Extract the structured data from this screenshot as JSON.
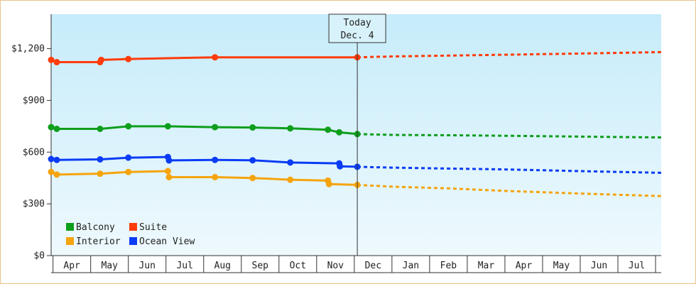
{
  "chart_data": {
    "type": "line",
    "ylim": [
      0,
      1400
    ],
    "y_ticks": [
      {
        "value": 0,
        "label": "$0"
      },
      {
        "value": 300,
        "label": "$300"
      },
      {
        "value": 600,
        "label": "$600"
      },
      {
        "value": 900,
        "label": "$900"
      },
      {
        "value": 1200,
        "label": "$1,200"
      }
    ],
    "months": [
      "Apr",
      "May",
      "Jun",
      "Jul",
      "Aug",
      "Sep",
      "Oct",
      "Nov",
      "Dec",
      "Jan",
      "Feb",
      "Mar",
      "Apr",
      "May",
      "Jun",
      "Jul"
    ],
    "today": {
      "line1": "Today",
      "line2": "Dec. 4",
      "x": 8.08
    },
    "x_range": [
      -0.05,
      16.15
    ],
    "legend": {
      "placement": "bottom-left",
      "items": [
        {
          "name": "Balcony",
          "color": "#0e9e1c"
        },
        {
          "name": "Suite",
          "color": "#ff3c0a"
        },
        {
          "name": "Interior",
          "color": "#f5a40e"
        },
        {
          "name": "Ocean View",
          "color": "#0a3cf5"
        }
      ]
    },
    "series": [
      {
        "name": "Suite",
        "color": "#ff3c0a",
        "points": [
          [
            -0.05,
            1135
          ],
          [
            0.1,
            1122
          ],
          [
            1.25,
            1122
          ],
          [
            1.28,
            1135
          ],
          [
            2.0,
            1140
          ],
          [
            4.3,
            1150
          ],
          [
            8.08,
            1150
          ]
        ],
        "forecast": [
          [
            8.08,
            1150
          ],
          [
            9.0,
            1155
          ],
          [
            10.5,
            1160
          ],
          [
            12.0,
            1165
          ],
          [
            14.0,
            1172
          ],
          [
            16.15,
            1180
          ]
        ]
      },
      {
        "name": "Balcony",
        "color": "#0e9e1c",
        "points": [
          [
            -0.05,
            745
          ],
          [
            0.1,
            735
          ],
          [
            1.25,
            735
          ],
          [
            2.0,
            750
          ],
          [
            3.05,
            750
          ],
          [
            4.3,
            745
          ],
          [
            5.3,
            743
          ],
          [
            6.3,
            738
          ],
          [
            7.3,
            730
          ],
          [
            7.6,
            715
          ],
          [
            8.08,
            705
          ]
        ],
        "forecast": [
          [
            8.08,
            705
          ],
          [
            9.0,
            700
          ],
          [
            10.5,
            698
          ],
          [
            12.0,
            695
          ],
          [
            14.0,
            690
          ],
          [
            16.15,
            685
          ]
        ]
      },
      {
        "name": "Ocean View",
        "color": "#0a3cf5",
        "points": [
          [
            -0.05,
            560
          ],
          [
            0.1,
            555
          ],
          [
            1.25,
            558
          ],
          [
            2.0,
            568
          ],
          [
            3.05,
            572
          ],
          [
            3.08,
            552
          ],
          [
            4.3,
            555
          ],
          [
            5.3,
            553
          ],
          [
            6.3,
            540
          ],
          [
            7.6,
            535
          ],
          [
            7.62,
            518
          ],
          [
            8.08,
            515
          ]
        ],
        "forecast": [
          [
            8.08,
            515
          ],
          [
            9.0,
            510
          ],
          [
            10.5,
            505
          ],
          [
            12.0,
            500
          ],
          [
            14.0,
            490
          ],
          [
            16.15,
            480
          ]
        ]
      },
      {
        "name": "Interior",
        "color": "#f5a40e",
        "points": [
          [
            -0.05,
            485
          ],
          [
            0.1,
            470
          ],
          [
            1.25,
            475
          ],
          [
            2.0,
            485
          ],
          [
            3.05,
            490
          ],
          [
            3.08,
            455
          ],
          [
            4.3,
            455
          ],
          [
            5.3,
            450
          ],
          [
            6.3,
            440
          ],
          [
            7.3,
            435
          ],
          [
            7.33,
            415
          ],
          [
            8.08,
            410
          ]
        ],
        "forecast": [
          [
            8.08,
            410
          ],
          [
            9.0,
            400
          ],
          [
            10.5,
            390
          ],
          [
            12.0,
            375
          ],
          [
            14.0,
            360
          ],
          [
            16.15,
            345
          ]
        ]
      }
    ]
  }
}
